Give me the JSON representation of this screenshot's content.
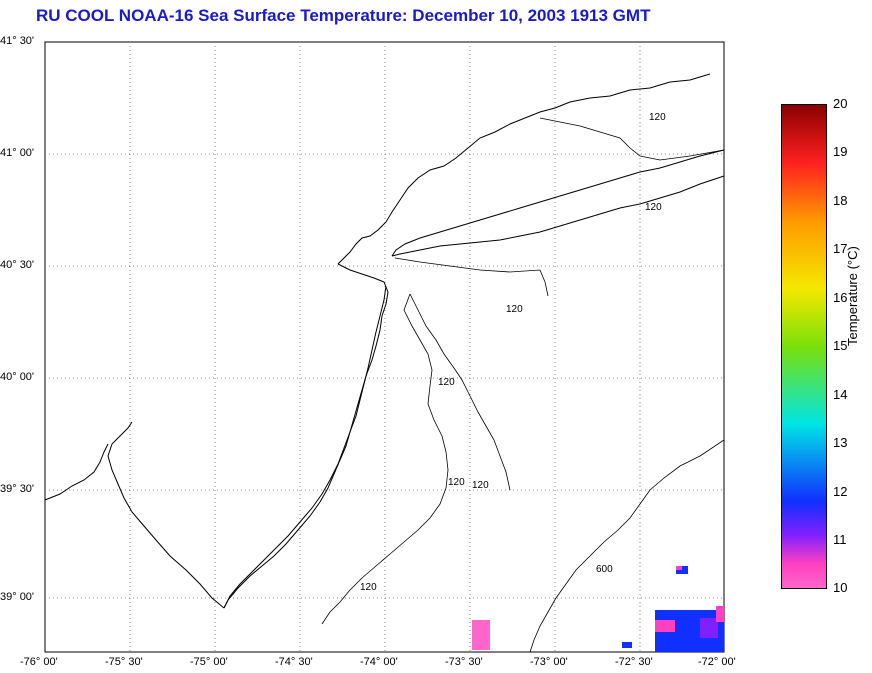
{
  "title": "RU COOL  NOAA-16  Sea Surface Temperature:  December 10, 2003 1913 GMT",
  "lat_labels": [
    "41° 30'",
    "41° 00'",
    "40° 30'",
    "40° 00'",
    "39° 30'",
    "39° 00'"
  ],
  "lon_labels": [
    "-76° 00'",
    "-75° 30'",
    "-75° 00'",
    "-74° 30'",
    "-74° 00'",
    "-73° 30'",
    "-73° 00'",
    "-72° 30'",
    "-72° 00'"
  ],
  "contour_labels": [
    "120",
    "120",
    "120",
    "120",
    "120",
    "120",
    "120",
    "600"
  ],
  "colorbar": {
    "label": "Temperature (°C)",
    "ticks": [
      "20",
      "19",
      "18",
      "17",
      "16",
      "15",
      "14",
      "13",
      "12",
      "11",
      "10"
    ],
    "colors": {
      "max": "#8b0000",
      "red": "#ff2020",
      "orange": "#ff9900",
      "yellow": "#f5e800",
      "green": "#7be00a",
      "cyan": "#00e5e5",
      "blue": "#1030ff",
      "violet": "#8020ff",
      "magenta": "#ff40c0",
      "min": "#ff66cc"
    }
  }
}
